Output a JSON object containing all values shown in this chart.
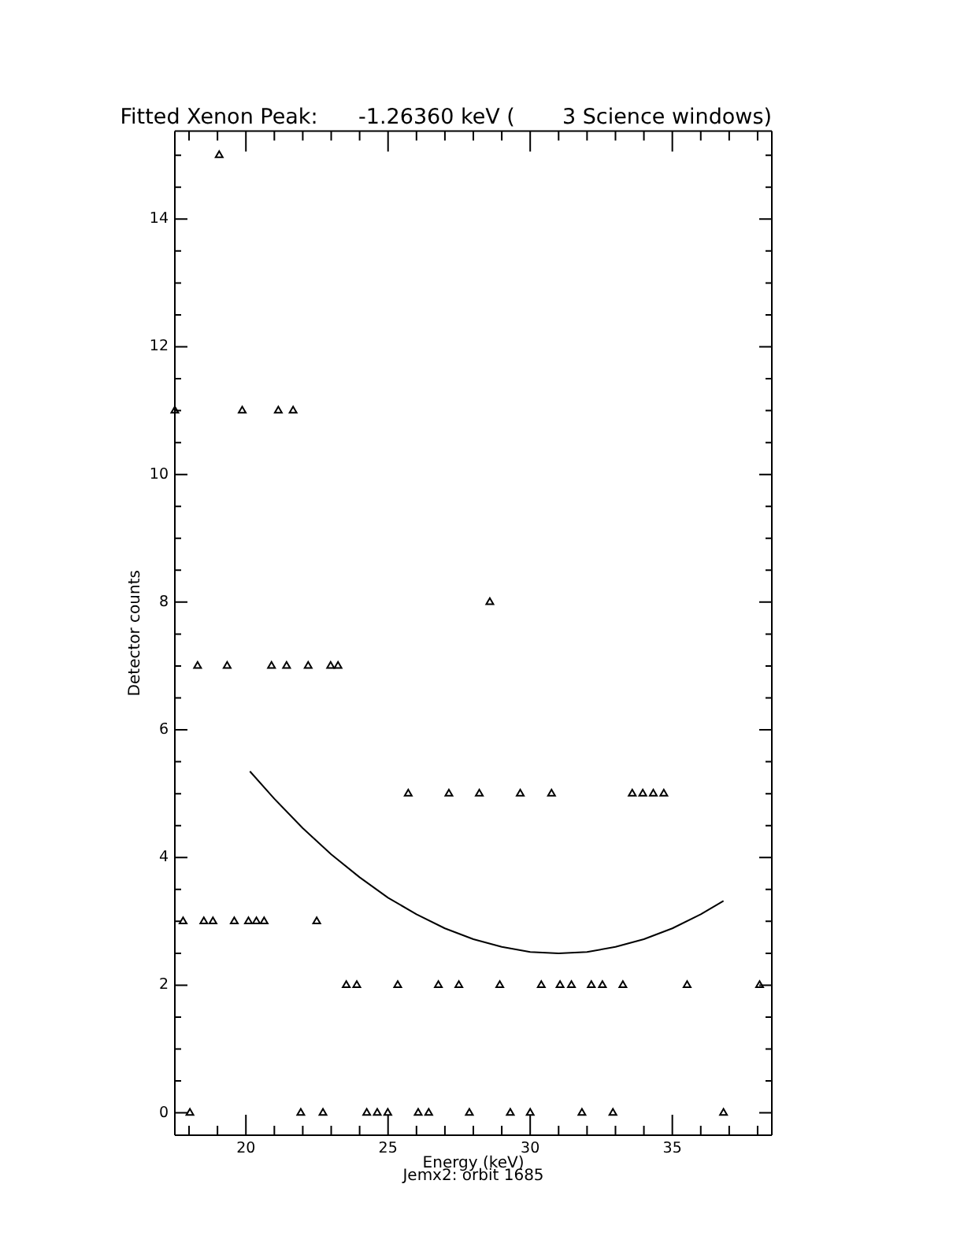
{
  "chart_data": {
    "type": "scatter",
    "title": "Fitted Xenon Peak:      -1.26360 keV (       3 Science windows)",
    "xlabel": "Energy (keV)",
    "ylabel": "Detector counts",
    "annotations": [
      "Jemx2: orbit 1685"
    ],
    "xlim": [
      17.5,
      38.5
    ],
    "ylim": [
      -0.35,
      15.38
    ],
    "xticks": [
      {
        "value": 18,
        "label": null
      },
      {
        "value": 19,
        "label": null
      },
      20,
      {
        "value": 21,
        "label": null
      },
      {
        "value": 22,
        "label": null
      },
      {
        "value": 23,
        "label": null
      },
      {
        "value": 24,
        "label": null
      },
      25,
      {
        "value": 26,
        "label": null
      },
      {
        "value": 27,
        "label": null
      },
      {
        "value": 28,
        "label": null
      },
      {
        "value": 29,
        "label": null
      },
      30,
      {
        "value": 31,
        "label": null
      },
      {
        "value": 32,
        "label": null
      },
      {
        "value": 33,
        "label": null
      },
      {
        "value": 34,
        "label": null
      },
      35,
      {
        "value": 36,
        "label": null
      },
      {
        "value": 37,
        "label": null
      },
      {
        "value": 38,
        "label": null
      }
    ],
    "yticks": [
      0,
      {
        "value": 0.5,
        "label": null
      },
      {
        "value": 1,
        "label": null
      },
      {
        "value": 1.5,
        "label": null
      },
      2,
      {
        "value": 2.5,
        "label": null
      },
      {
        "value": 3,
        "label": null
      },
      {
        "value": 3.5,
        "label": null
      },
      4,
      {
        "value": 4.5,
        "label": null
      },
      {
        "value": 5,
        "label": null
      },
      {
        "value": 5.5,
        "label": null
      },
      6,
      {
        "value": 6.5,
        "label": null
      },
      {
        "value": 7,
        "label": null
      },
      {
        "value": 7.5,
        "label": null
      },
      8,
      {
        "value": 8.5,
        "label": null
      },
      {
        "value": 9,
        "label": null
      },
      {
        "value": 9.5,
        "label": null
      },
      10,
      {
        "value": 10.5,
        "label": null
      },
      {
        "value": 11,
        "label": null
      },
      {
        "value": 11.5,
        "label": null
      },
      12,
      {
        "value": 12.5,
        "label": null
      },
      {
        "value": 13,
        "label": null
      },
      {
        "value": 13.5,
        "label": null
      },
      14,
      {
        "value": 14.5,
        "label": null
      },
      {
        "value": 15,
        "label": null
      }
    ],
    "grid": false,
    "legend": false,
    "series": [
      {
        "type": "scatter",
        "color": "#000000",
        "marker": "triangle",
        "x": [
          19.06,
          17.5,
          19.87,
          21.14,
          21.66,
          28.58,
          18.3,
          19.34,
          20.9,
          21.43,
          22.19,
          22.98,
          23.24,
          25.71,
          27.14,
          28.21,
          29.65,
          30.75,
          33.59,
          33.96,
          34.33,
          34.7,
          17.79,
          18.52,
          18.84,
          19.59,
          20.09,
          20.37,
          20.64,
          22.49,
          23.53,
          23.9,
          25.34,
          26.77,
          27.49,
          28.93,
          30.39,
          31.05,
          31.45,
          32.15,
          32.54,
          33.26,
          35.52,
          38.07,
          18.03,
          21.93,
          22.71,
          24.25,
          24.62,
          24.99,
          26.06,
          26.43,
          27.86,
          29.3,
          30.0,
          31.82,
          32.91,
          36.8
        ],
        "values": [
          15,
          11,
          11,
          11,
          11,
          8,
          7,
          7,
          7,
          7,
          7,
          7,
          7,
          5,
          5,
          5,
          5,
          5,
          5,
          5,
          5,
          5,
          3,
          3,
          3,
          3,
          3,
          3,
          3,
          3,
          2,
          2,
          2,
          2,
          2,
          2,
          2,
          2,
          2,
          2,
          2,
          2,
          2,
          2,
          0,
          0,
          0,
          0,
          0,
          0,
          0,
          0,
          0,
          0,
          0,
          0,
          0,
          0
        ]
      },
      {
        "type": "line",
        "color": "#000000",
        "marker": "none",
        "line_style": "solid",
        "x": [
          20.14,
          21,
          22,
          23,
          24,
          25,
          26,
          27,
          28,
          29,
          30,
          31,
          32,
          33,
          34,
          35,
          36,
          36.8
        ],
        "values": [
          5.35,
          4.92,
          4.46,
          4.05,
          3.69,
          3.37,
          3.11,
          2.89,
          2.72,
          2.6,
          2.52,
          2.5,
          2.52,
          2.6,
          2.72,
          2.89,
          3.11,
          3.32
        ]
      }
    ]
  }
}
